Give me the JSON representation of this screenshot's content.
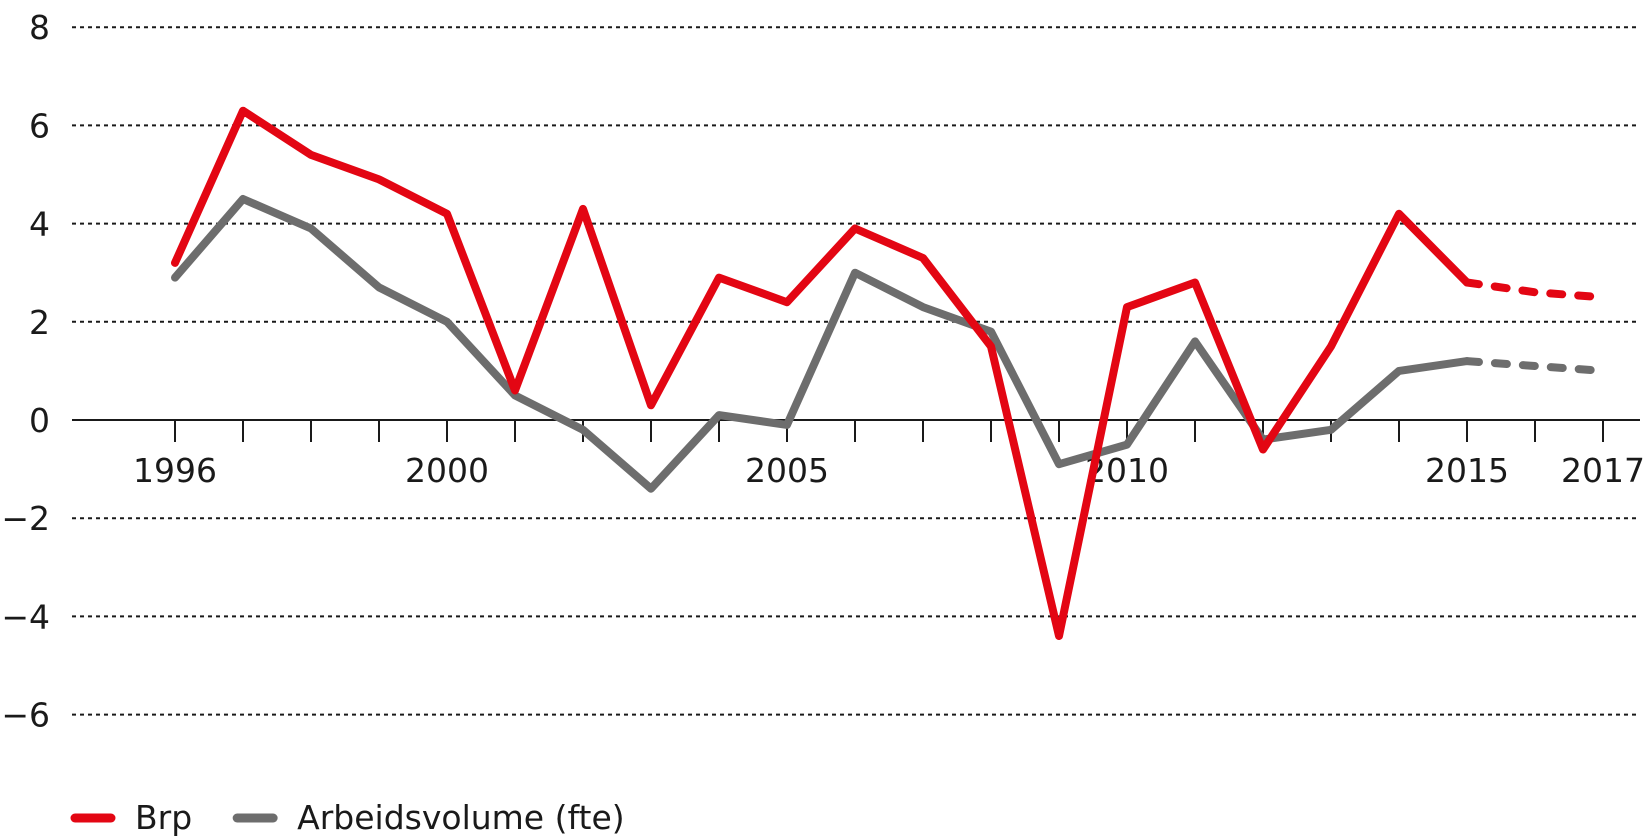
{
  "chart_data": {
    "type": "line",
    "x": [
      1996,
      1997,
      1998,
      1999,
      2000,
      2001,
      2002,
      2003,
      2004,
      2005,
      2006,
      2007,
      2008,
      2009,
      2010,
      2011,
      2012,
      2013,
      2014,
      2015,
      2016,
      2017
    ],
    "x_tick_labels": [
      "1996",
      "2000",
      "2005",
      "2010",
      "2015",
      "2017"
    ],
    "x_tick_values": [
      1996,
      2000,
      2005,
      2010,
      2015,
      2017
    ],
    "y_tick_labels": [
      "8",
      "6",
      "4",
      "2",
      "0",
      "−2",
      "−4",
      "−6"
    ],
    "y_tick_values": [
      8,
      6,
      4,
      2,
      0,
      -2,
      -4,
      -6
    ],
    "ylim": [
      -6,
      8
    ],
    "xlim": [
      1996,
      2017
    ],
    "grid": "horizontal-dotted",
    "legend_position": "bottom-left",
    "forecast_from": 2015,
    "series": [
      {
        "name": "Brp",
        "color": "#e30613",
        "values": [
          3.2,
          6.3,
          5.4,
          4.9,
          4.2,
          0.6,
          4.3,
          0.3,
          2.9,
          2.4,
          3.9,
          3.3,
          1.5,
          -4.4,
          2.3,
          2.8,
          -0.6,
          1.5,
          4.2,
          2.8,
          2.6,
          2.5
        ]
      },
      {
        "name": "Arbeidsvolume (fte)",
        "color": "#6d6d6d",
        "values": [
          2.9,
          4.5,
          3.9,
          2.7,
          2.0,
          0.5,
          -0.2,
          -1.4,
          0.1,
          -0.1,
          3.0,
          2.3,
          1.8,
          -0.9,
          -0.5,
          1.6,
          -0.4,
          -0.2,
          1.0,
          1.2,
          1.1,
          1.0
        ]
      }
    ]
  }
}
